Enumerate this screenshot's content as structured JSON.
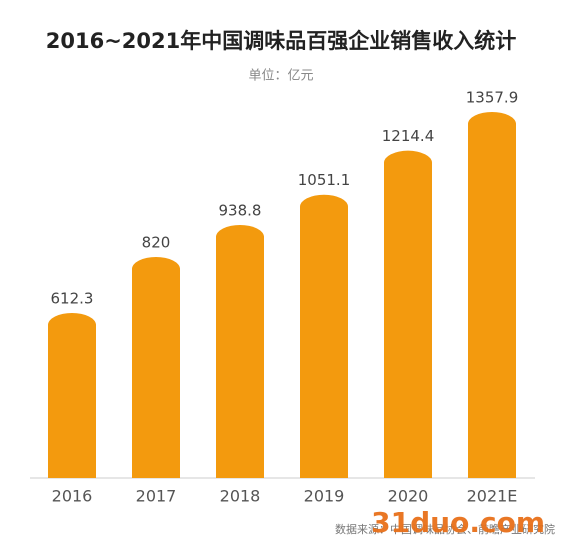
{
  "chart_data": {
    "type": "bar",
    "title": "2016~2021年中国调味品百强企业销售收入统计",
    "subtitle": "单位：亿元",
    "categories": [
      "2016",
      "2017",
      "2018",
      "2019",
      "2020",
      "2021E"
    ],
    "values": [
      612.3,
      820,
      938.8,
      1051.1,
      1214.4,
      1357.9
    ],
    "color": "#f39a0e",
    "source": "数据来源：中国调味品协会、前瞻产业研究院",
    "watermark": "31duo.com"
  }
}
